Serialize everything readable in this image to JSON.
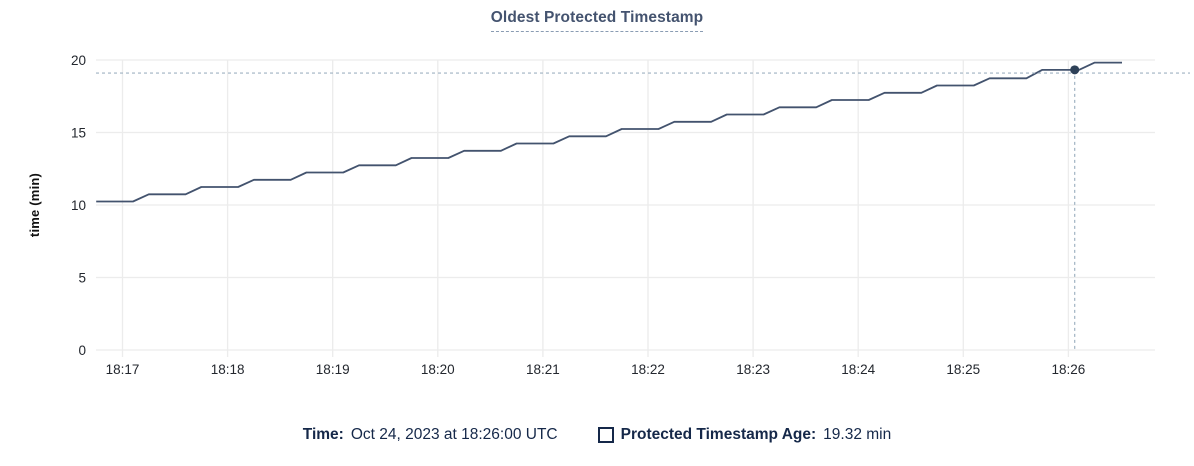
{
  "chart_data": {
    "type": "line",
    "title": "Oldest Protected Timestamp",
    "ylabel": "time (min)",
    "ylim": [
      0,
      20
    ],
    "yticks": [
      0,
      5,
      10,
      15,
      20
    ],
    "xtick_minutes": [
      17,
      18,
      19,
      20,
      21,
      22,
      23,
      24,
      25,
      26
    ],
    "xtick_labels": [
      "18:17",
      "18:18",
      "18:19",
      "18:20",
      "18:21",
      "18:22",
      "18:23",
      "18:24",
      "18:25",
      "18:26"
    ],
    "x_range_minutes": [
      16.75,
      26.55
    ],
    "grid": true,
    "series": [
      {
        "name": "Protected Timestamp Age",
        "unit": "min",
        "points": [
          [
            16.75,
            10.24
          ],
          [
            17.1,
            10.24
          ],
          [
            17.25,
            10.74
          ],
          [
            17.6,
            10.74
          ],
          [
            17.75,
            11.24
          ],
          [
            18.1,
            11.24
          ],
          [
            18.25,
            11.74
          ],
          [
            18.6,
            11.74
          ],
          [
            18.75,
            12.24
          ],
          [
            19.1,
            12.24
          ],
          [
            19.25,
            12.74
          ],
          [
            19.6,
            12.74
          ],
          [
            19.75,
            13.24
          ],
          [
            20.1,
            13.24
          ],
          [
            20.25,
            13.74
          ],
          [
            20.6,
            13.74
          ],
          [
            20.75,
            14.24
          ],
          [
            21.1,
            14.24
          ],
          [
            21.25,
            14.74
          ],
          [
            21.6,
            14.74
          ],
          [
            21.75,
            15.24
          ],
          [
            22.1,
            15.24
          ],
          [
            22.25,
            15.74
          ],
          [
            22.6,
            15.74
          ],
          [
            22.75,
            16.24
          ],
          [
            23.1,
            16.24
          ],
          [
            23.25,
            16.74
          ],
          [
            23.6,
            16.74
          ],
          [
            23.75,
            17.24
          ],
          [
            24.1,
            17.24
          ],
          [
            24.25,
            17.74
          ],
          [
            24.6,
            17.74
          ],
          [
            24.75,
            18.24
          ],
          [
            25.1,
            18.24
          ],
          [
            25.25,
            18.74
          ],
          [
            25.6,
            18.74
          ],
          [
            25.75,
            19.32
          ],
          [
            26.1,
            19.32
          ],
          [
            26.25,
            19.82
          ],
          [
            26.51,
            19.82
          ]
        ]
      }
    ],
    "crosshair": {
      "time_minutes": 26.06,
      "point_value": 19.32,
      "hline_value": 19.1
    },
    "colors": {
      "line": "#43536e",
      "dot": "#2e4158",
      "crosshair": "#9fb2c2",
      "grid": "#ececec",
      "tick_text": "#23272e"
    }
  },
  "legend": {
    "time_label": "Time:",
    "time_value": "Oct 24, 2023 at 18:26:00 UTC",
    "series_label": "Protected Timestamp Age:",
    "series_value": "19.32 min"
  }
}
